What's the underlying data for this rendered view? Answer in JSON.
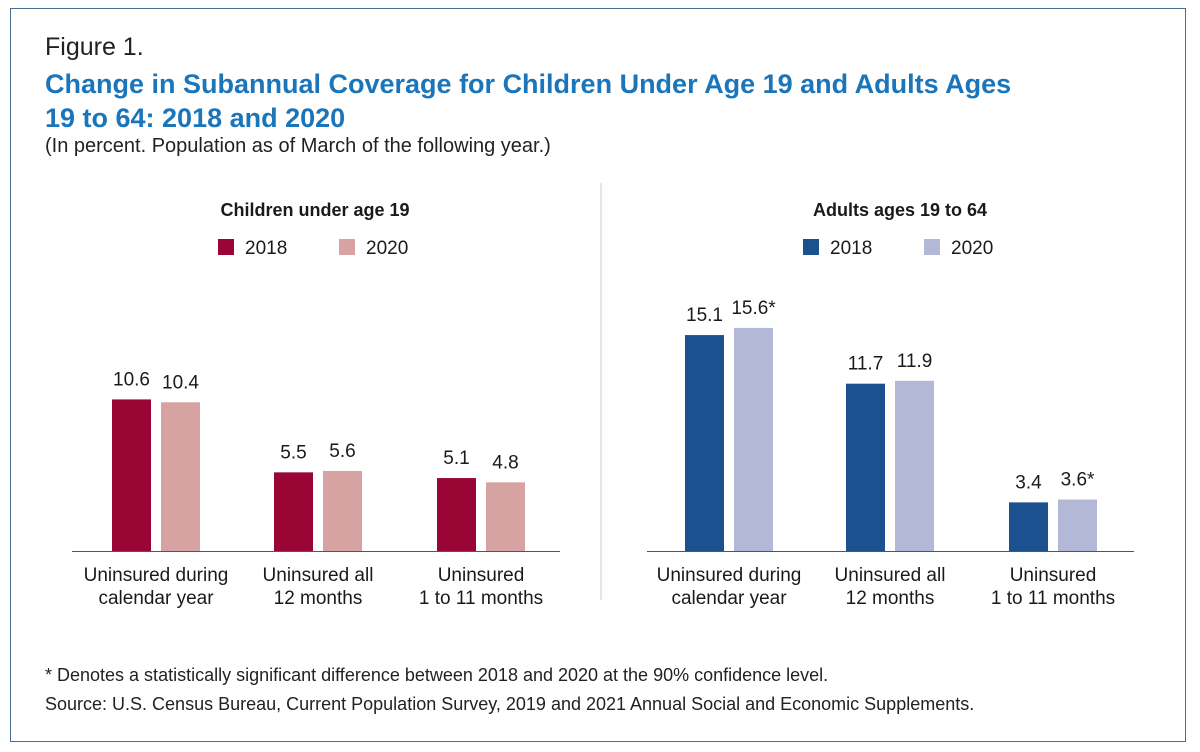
{
  "figure_label": "Figure 1.",
  "title": "Change in Subannual Coverage for Children Under Age 19 and Adults Ages 19 to 64: 2018 and 2020",
  "subtitle": "(In percent. Population as of March of the following year.)",
  "footnote": "* Denotes a statistically significant difference between 2018 and 2020 at the 90% confidence level.",
  "source": "Source: U.S. Census Bureau, Current Population Survey, 2019 and 2021 Annual Social and Economic Supplements.",
  "chart_data": [
    {
      "type": "bar",
      "title": "Children under age 19",
      "categories": [
        [
          "Uninsured during",
          "calendar year"
        ],
        [
          "Uninsured all",
          "12 months"
        ],
        [
          "Uninsured",
          "1 to 11 months"
        ]
      ],
      "series": [
        {
          "name": "2018",
          "color": "#990535",
          "values": [
            10.6,
            5.5,
            5.1
          ],
          "labels": [
            "10.6",
            "5.5",
            "5.1"
          ]
        },
        {
          "name": "2020",
          "color": "#d6a3a2",
          "values": [
            10.4,
            5.6,
            4.8
          ],
          "labels": [
            "10.4",
            "5.6",
            "4.8"
          ]
        }
      ],
      "ylim": [
        0,
        18
      ],
      "grid": false,
      "legend": "top"
    },
    {
      "type": "bar",
      "title": "Adults ages 19 to 64",
      "categories": [
        [
          "Uninsured during",
          "calendar year"
        ],
        [
          "Uninsured all",
          "12 months"
        ],
        [
          "Uninsured",
          "1 to 11 months"
        ]
      ],
      "series": [
        {
          "name": "2018",
          "color": "#1c5190",
          "values": [
            15.1,
            11.7,
            3.4
          ],
          "labels": [
            "15.1",
            "11.7",
            "3.4"
          ]
        },
        {
          "name": "2020",
          "color": "#b3b8d6",
          "values": [
            15.6,
            11.9,
            3.6
          ],
          "labels": [
            "15.6*",
            "11.9",
            "3.6*"
          ]
        }
      ],
      "ylim": [
        0,
        18
      ],
      "grid": false,
      "legend": "top"
    }
  ]
}
